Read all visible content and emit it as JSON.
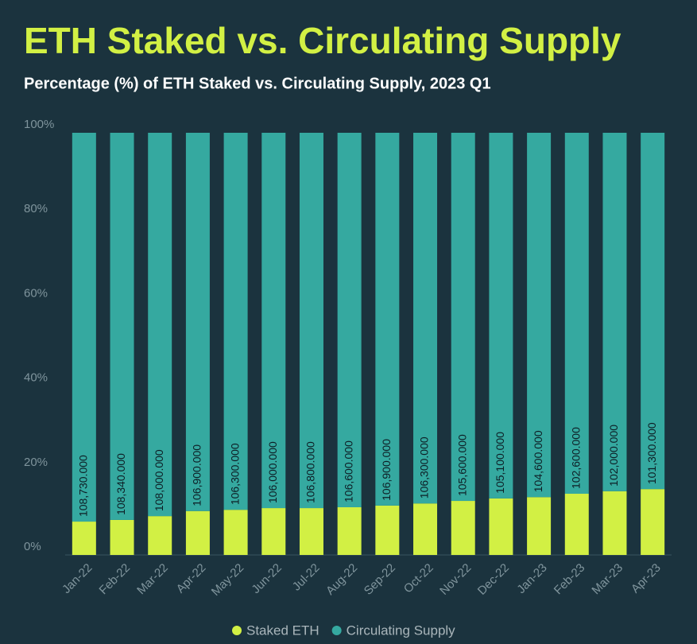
{
  "chart_data": {
    "type": "stacked_bar",
    "title": "ETH Staked vs. Circulating Supply",
    "subtitle": "Percentage (%) of ETH Staked vs. Circulating Supply, 2023 Q1",
    "categories": [
      "Jan-22",
      "Feb-22",
      "Mar-22",
      "Apr-22",
      "May-22",
      "Jun-22",
      "Jul-22",
      "Aug-22",
      "Sep-22",
      "Oct-22",
      "Nov-22",
      "Dec-22",
      "Jan-23",
      "Feb-23",
      "Mar-23",
      "Apr-23"
    ],
    "series": [
      {
        "name": "Staked ETH",
        "color": "#d2f044",
        "values": [
          7.9,
          8.3,
          9.2,
          10.4,
          10.7,
          11.1,
          11.1,
          11.3,
          11.7,
          12.2,
          12.8,
          13.4,
          13.7,
          14.5,
          15.1,
          15.6
        ]
      },
      {
        "name": "Circulating Supply",
        "color": "#35a9a0",
        "values": [
          92.1,
          91.7,
          90.8,
          89.6,
          89.3,
          88.9,
          88.9,
          88.7,
          88.3,
          87.8,
          87.2,
          86.6,
          86.3,
          85.5,
          84.9,
          84.4
        ]
      }
    ],
    "annotations": [
      "108,730.000",
      "108,340.000",
      "108,000.000",
      "106,900.000",
      "106,300.000",
      "106,000.000",
      "106,800.000",
      "106,600.000",
      "106,900.000",
      "106,300.000",
      "105,600.000",
      "105,100.000",
      "104,600.000",
      "102,600.000",
      "102,000.000",
      "101,300.000"
    ],
    "ylim": [
      0,
      100
    ],
    "yticks": [
      {
        "value": 0,
        "label": "0%"
      },
      {
        "value": 20,
        "label": "20%"
      },
      {
        "value": 40,
        "label": "40%"
      },
      {
        "value": 60,
        "label": "60%"
      },
      {
        "value": 80,
        "label": "80%"
      },
      {
        "value": 100,
        "label": "100%"
      }
    ],
    "legend": "bottom"
  }
}
